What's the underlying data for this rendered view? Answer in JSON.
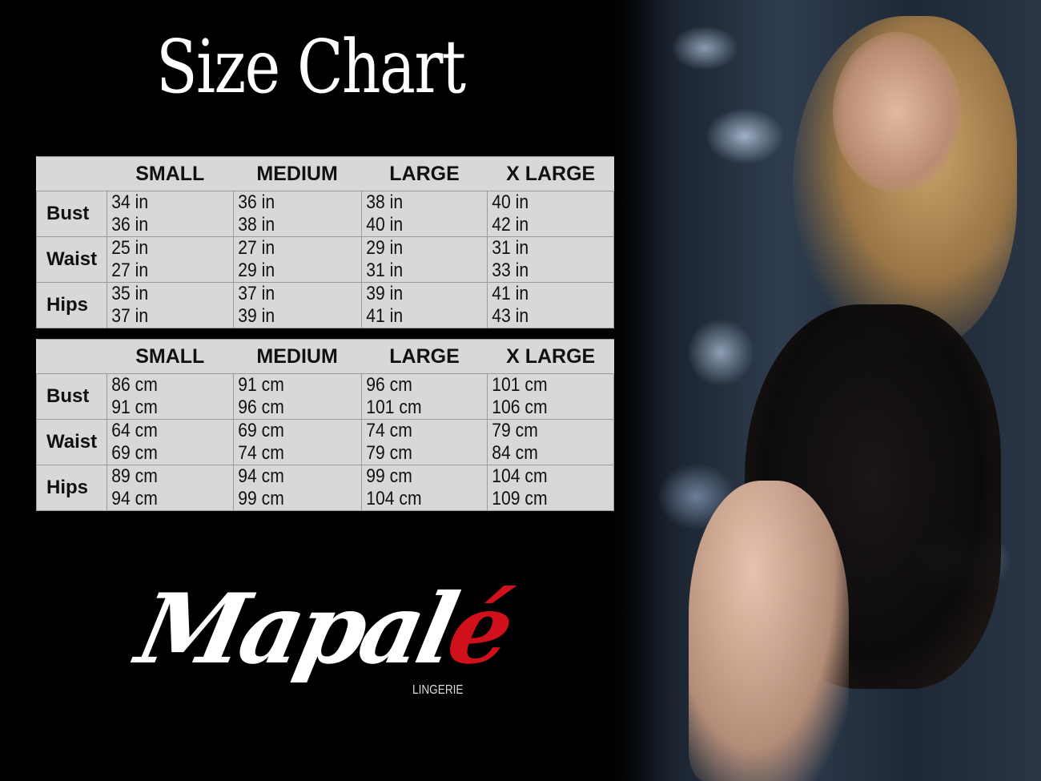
{
  "title": "Size Chart",
  "sizes": [
    "SMALL",
    "MEDIUM",
    "LARGE",
    "X LARGE"
  ],
  "tables": [
    {
      "unit": "in",
      "rows": [
        {
          "label": "Bust",
          "values": [
            "34 in",
            "36 in",
            "36 in",
            "38 in",
            "38 in",
            "40 in",
            "40 in",
            "42 in"
          ]
        },
        {
          "label": "Waist",
          "values": [
            "25 in",
            "27 in",
            "27 in",
            "29 in",
            "29 in",
            "31 in",
            "31 in",
            "33 in"
          ]
        },
        {
          "label": "Hips",
          "values": [
            "35 in",
            "37 in",
            "37 in",
            "39 in",
            "39 in",
            "41 in",
            "41 in",
            "43 in"
          ]
        }
      ]
    },
    {
      "unit": "cm",
      "rows": [
        {
          "label": "Bust",
          "values": [
            "86 cm",
            "91 cm",
            "91 cm",
            "96 cm",
            "96 cm",
            "101 cm",
            "101 cm",
            "106 cm"
          ]
        },
        {
          "label": "Waist",
          "values": [
            "64 cm",
            "69 cm",
            "69 cm",
            "74 cm",
            "74 cm",
            "79  cm",
            "79 cm",
            "84 cm"
          ]
        },
        {
          "label": "Hips",
          "values": [
            "89 cm",
            "94 cm",
            "94 cm",
            "99 cm",
            "99 cm",
            "104 cm",
            "104 cm",
            "109 cm"
          ]
        }
      ]
    }
  ],
  "brand": {
    "logo_text": "Mapalé",
    "logo_main": "Mapal",
    "logo_accent": "é",
    "tagline": "LINGERIE",
    "accent_color": "#d0101a"
  }
}
